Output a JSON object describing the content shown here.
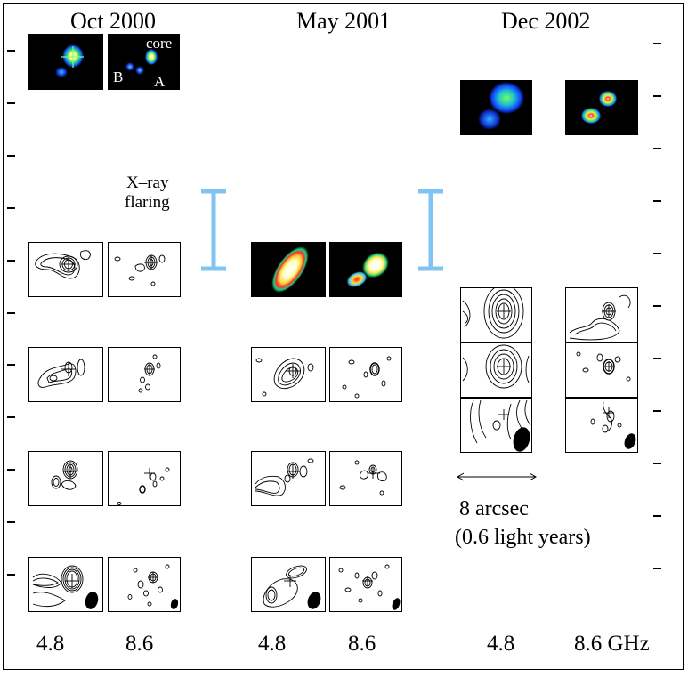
{
  "epochs": [
    "Oct 2000",
    "May 2001",
    "Dec 2002"
  ],
  "frequencies": [
    "4.8",
    "8.6",
    "4.8",
    "8.6",
    "4.8",
    "8.6 GHz"
  ],
  "annotations": {
    "core": "core",
    "component_a": "A",
    "component_b": "B",
    "xray_line1": "X–ray",
    "xray_line2": "flaring"
  },
  "scale_bar": {
    "line1": "8 arcsec",
    "line2": "(0.6 light years)"
  },
  "colors": {
    "flare_bar": "#80c4f2",
    "image_background": "#000000",
    "contour": "#000000"
  }
}
